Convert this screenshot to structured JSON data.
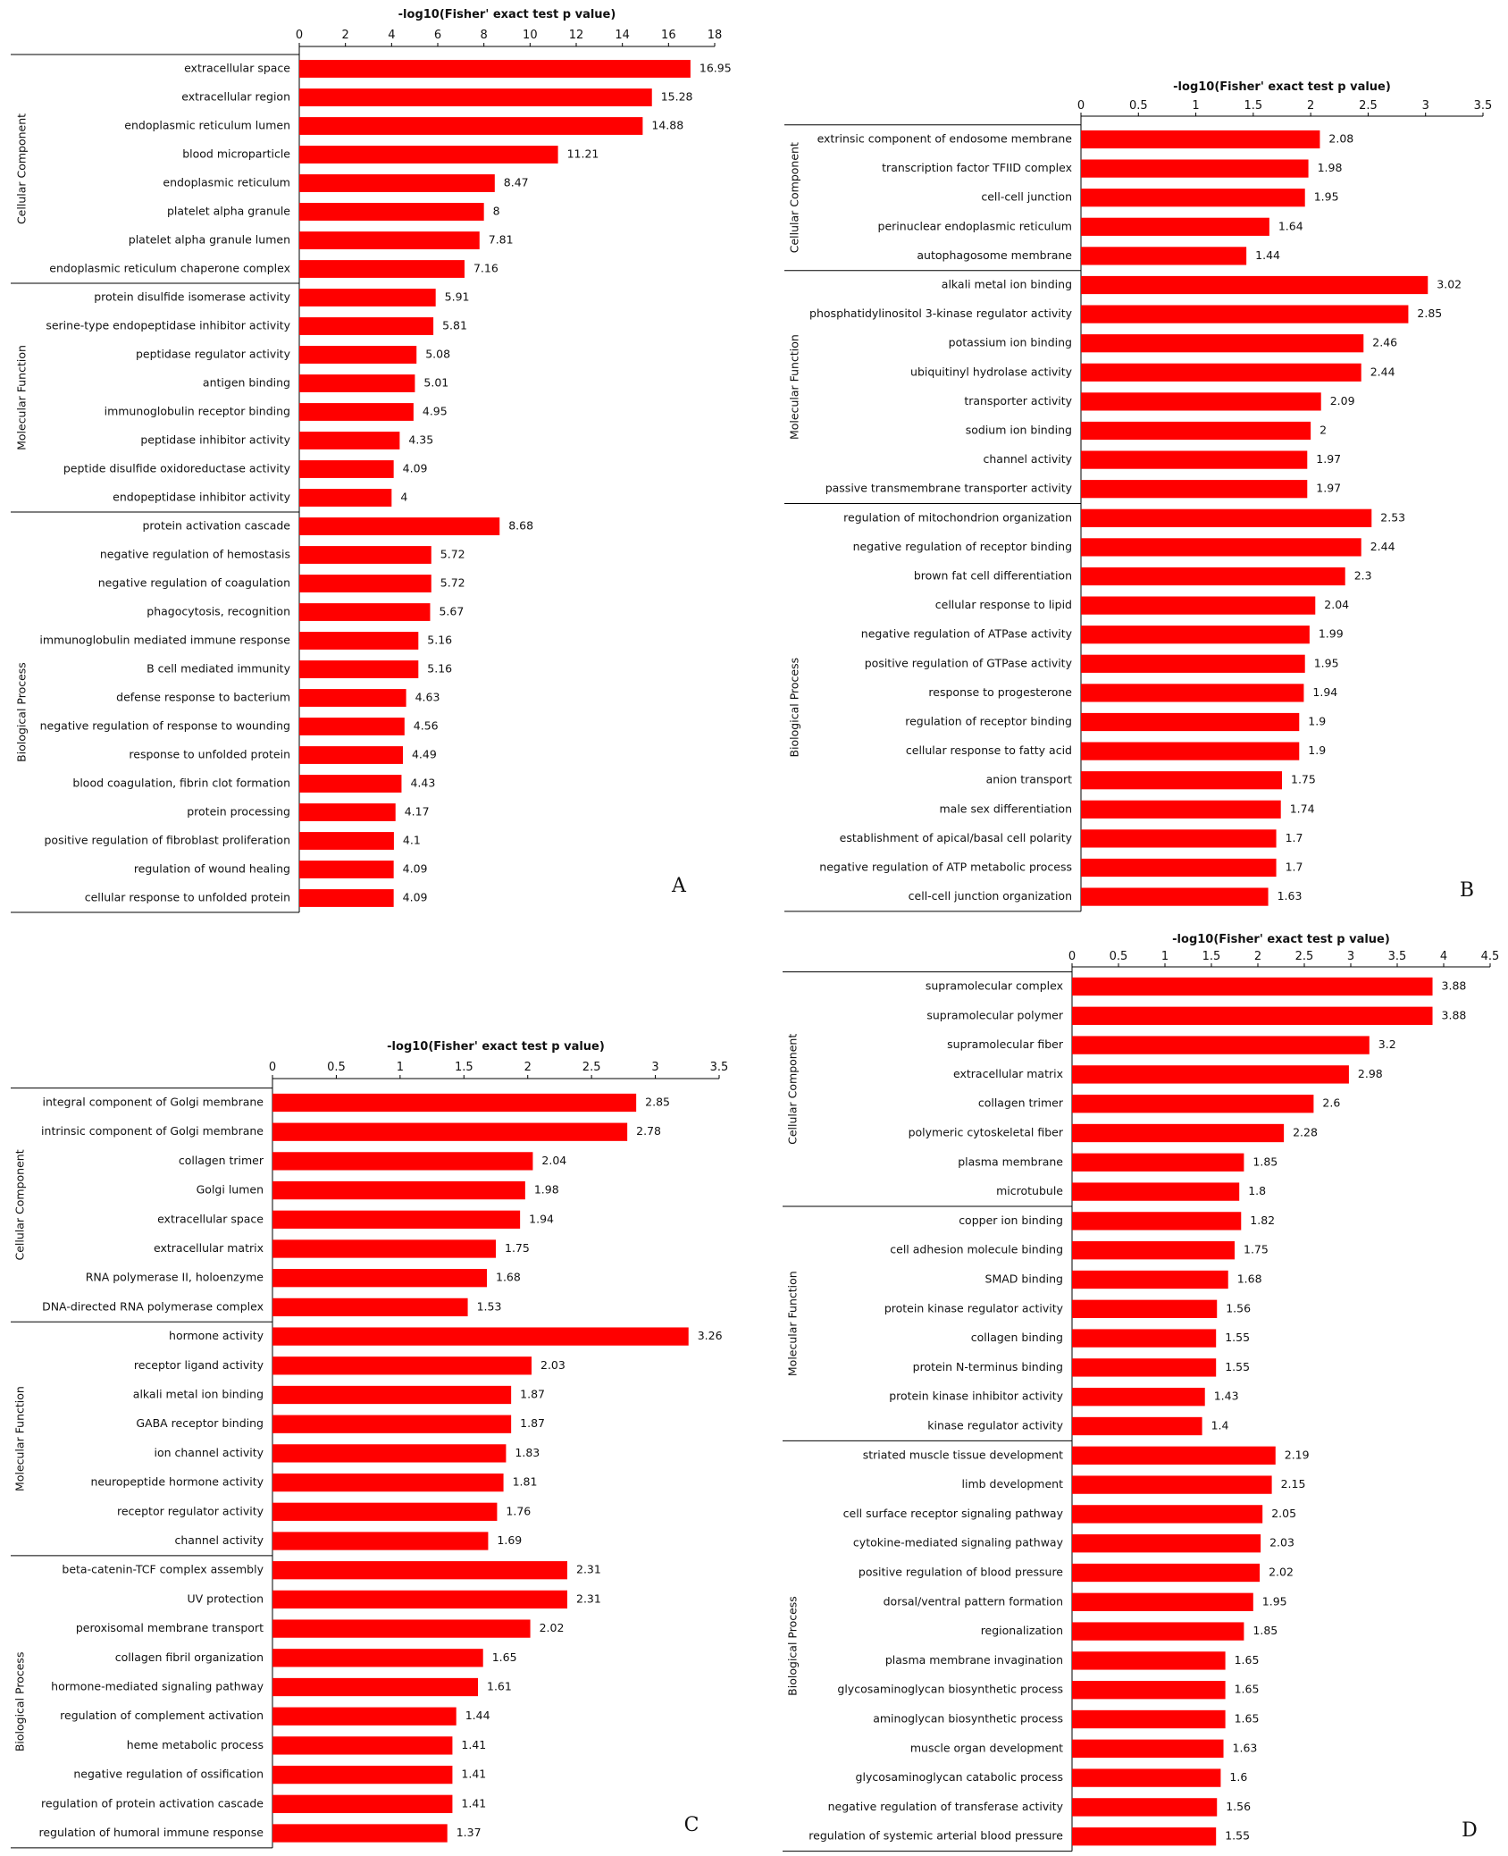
{
  "chart_data": [
    {
      "type": "bar",
      "panel": "A",
      "xlabel": "-log10(Fisher' exact test p value)",
      "xlim": [
        0,
        18
      ],
      "xticks": [
        0,
        2,
        4,
        6,
        8,
        10,
        12,
        14,
        16,
        18
      ],
      "bar_color": "#ff0000",
      "groups": [
        {
          "name": "Cellular Component",
          "count": 8
        },
        {
          "name": "Molecular Function",
          "count": 8
        },
        {
          "name": "Biological Process",
          "count": 14
        }
      ],
      "categories": [
        "extracellular space",
        "extracellular region",
        "endoplasmic reticulum lumen",
        "blood microparticle",
        "endoplasmic reticulum",
        "platelet alpha granule",
        "platelet alpha granule lumen",
        "endoplasmic reticulum chaperone complex",
        "protein disulfide isomerase activity",
        "serine-type endopeptidase inhibitor activity",
        "peptidase regulator activity",
        "antigen binding",
        "immunoglobulin receptor binding",
        "peptidase inhibitor activity",
        "peptide disulfide oxidoreductase activity",
        "endopeptidase inhibitor activity",
        "protein activation cascade",
        "negative regulation of hemostasis",
        "negative regulation of coagulation",
        "phagocytosis, recognition",
        "immunoglobulin mediated immune response",
        "B cell mediated immunity",
        "defense response to bacterium",
        "negative regulation of response to wounding",
        "response to unfolded protein",
        "blood coagulation, fibrin clot formation",
        "protein processing",
        "positive regulation of fibroblast proliferation",
        "regulation of wound healing",
        "cellular response to unfolded protein"
      ],
      "values": [
        16.95,
        15.28,
        14.88,
        11.21,
        8.47,
        8,
        7.81,
        7.16,
        5.91,
        5.81,
        5.08,
        5.01,
        4.95,
        4.35,
        4.09,
        4,
        8.68,
        5.72,
        5.72,
        5.67,
        5.16,
        5.16,
        4.63,
        4.56,
        4.49,
        4.43,
        4.17,
        4.1,
        4.09,
        4.09
      ],
      "value_labels": [
        "16.95",
        "15.28",
        "14.88",
        "11.21",
        "8.47",
        "8",
        "7.81",
        "7.16",
        "5.91",
        "5.81",
        "5.08",
        "5.01",
        "4.95",
        "4.35",
        "4.09",
        "4",
        "8.68",
        "5.72",
        "5.72",
        "5.67",
        "5.16",
        "5.16",
        "4.63",
        "4.56",
        "4.49",
        "4.43",
        "4.17",
        "4.1",
        "4.09",
        "4.09"
      ]
    },
    {
      "type": "bar",
      "panel": "B",
      "xlabel": "-log10(Fisher' exact test p value)",
      "xlim": [
        0,
        3.5
      ],
      "xticks": [
        0,
        0.5,
        1,
        1.5,
        2,
        2.5,
        3,
        3.5
      ],
      "bar_color": "#ff0000",
      "groups": [
        {
          "name": "Cellular Component",
          "count": 5
        },
        {
          "name": "Molecular Function",
          "count": 8
        },
        {
          "name": "Biological Process",
          "count": 14
        }
      ],
      "categories": [
        "extrinsic component of endosome membrane",
        "transcription factor TFIID complex",
        "cell-cell junction",
        "perinuclear endoplasmic reticulum",
        "autophagosome membrane",
        "alkali metal ion binding",
        "phosphatidylinositol 3-kinase regulator activity",
        "potassium ion binding",
        "ubiquitinyl hydrolase activity",
        "transporter activity",
        "sodium ion binding",
        "channel activity",
        "passive transmembrane transporter activity",
        "regulation of mitochondrion organization",
        "negative regulation of receptor binding",
        "brown fat cell differentiation",
        "cellular response to lipid",
        "negative regulation of ATPase activity",
        "positive regulation of GTPase activity",
        "response to progesterone",
        "regulation of receptor binding",
        "cellular response to fatty acid",
        "anion transport",
        "male sex differentiation",
        "establishment of apical/basal cell polarity",
        "negative regulation of ATP metabolic process",
        "cell-cell junction organization"
      ],
      "values": [
        2.08,
        1.98,
        1.95,
        1.64,
        1.44,
        3.02,
        2.85,
        2.46,
        2.44,
        2.09,
        2,
        1.97,
        1.97,
        2.53,
        2.44,
        2.3,
        2.04,
        1.99,
        1.95,
        1.94,
        1.9,
        1.9,
        1.75,
        1.74,
        1.7,
        1.7,
        1.63
      ],
      "value_labels": [
        "2.08",
        "1.98",
        "1.95",
        "1.64",
        "1.44",
        "3.02",
        "2.85",
        "2.46",
        "2.44",
        "2.09",
        "2",
        "1.97",
        "1.97",
        "2.53",
        "2.44",
        "2.3",
        "2.04",
        "1.99",
        "1.95",
        "1.94",
        "1.9",
        "1.9",
        "1.75",
        "1.74",
        "1.7",
        "1.7",
        "1.63"
      ]
    },
    {
      "type": "bar",
      "panel": "C",
      "xlabel": "-log10(Fisher' exact test p value)",
      "xlim": [
        0,
        3.5
      ],
      "xticks": [
        0,
        0.5,
        1,
        1.5,
        2,
        2.5,
        3,
        3.5
      ],
      "bar_color": "#ff0000",
      "groups": [
        {
          "name": "Cellular Component",
          "count": 8
        },
        {
          "name": "Molecular Function",
          "count": 8
        },
        {
          "name": "Biological Process",
          "count": 10
        }
      ],
      "categories": [
        "integral component of Golgi membrane",
        "intrinsic component of Golgi membrane",
        "collagen trimer",
        "Golgi lumen",
        "extracellular space",
        "extracellular matrix",
        "RNA polymerase II, holoenzyme",
        "DNA-directed RNA polymerase complex",
        "hormone activity",
        "receptor ligand activity",
        "alkali metal ion binding",
        "GABA receptor binding",
        "ion channel activity",
        "neuropeptide hormone activity",
        "receptor regulator activity",
        "channel activity",
        "beta-catenin-TCF complex assembly",
        "UV protection",
        "peroxisomal membrane transport",
        "collagen fibril organization",
        "hormone-mediated signaling pathway",
        "regulation of complement activation",
        "heme metabolic process",
        "negative regulation of ossification",
        "regulation of protein activation cascade",
        "regulation of humoral immune response"
      ],
      "values": [
        2.85,
        2.78,
        2.04,
        1.98,
        1.94,
        1.75,
        1.68,
        1.53,
        3.26,
        2.03,
        1.87,
        1.87,
        1.83,
        1.81,
        1.76,
        1.69,
        2.31,
        2.31,
        2.02,
        1.65,
        1.61,
        1.44,
        1.41,
        1.41,
        1.41,
        1.37
      ],
      "value_labels": [
        "2.85",
        "2.78",
        "2.04",
        "1.98",
        "1.94",
        "1.75",
        "1.68",
        "1.53",
        "3.26",
        "2.03",
        "1.87",
        "1.87",
        "1.83",
        "1.81",
        "1.76",
        "1.69",
        "2.31",
        "2.31",
        "2.02",
        "1.65",
        "1.61",
        "1.44",
        "1.41",
        "1.41",
        "1.41",
        "1.37"
      ]
    },
    {
      "type": "bar",
      "panel": "D",
      "xlabel": "-log10(Fisher' exact test p value)",
      "xlim": [
        0,
        4.5
      ],
      "xticks": [
        0,
        0.5,
        1,
        1.5,
        2,
        2.5,
        3,
        3.5,
        4,
        4.5
      ],
      "bar_color": "#ff0000",
      "groups": [
        {
          "name": "Cellular Component",
          "count": 8
        },
        {
          "name": "Molecular Function",
          "count": 8
        },
        {
          "name": "Biological Process",
          "count": 14
        }
      ],
      "categories": [
        "supramolecular complex",
        "supramolecular polymer",
        "supramolecular fiber",
        "extracellular matrix",
        "collagen trimer",
        "polymeric cytoskeletal fiber",
        "plasma membrane",
        "microtubule",
        "copper ion binding",
        "cell adhesion molecule binding",
        "SMAD binding",
        "protein kinase regulator activity",
        "collagen binding",
        "protein N-terminus binding",
        "protein kinase inhibitor activity",
        "kinase regulator activity",
        "striated muscle tissue development",
        "limb development",
        "cell surface receptor signaling pathway",
        "cytokine-mediated signaling pathway",
        "positive regulation of blood pressure",
        "dorsal/ventral pattern formation",
        "regionalization",
        "plasma membrane invagination",
        "glycosaminoglycan biosynthetic process",
        "aminoglycan biosynthetic process",
        "muscle organ development",
        "glycosaminoglycan catabolic process",
        "negative regulation of transferase activity",
        "regulation of systemic arterial blood pressure"
      ],
      "values": [
        3.88,
        3.88,
        3.2,
        2.98,
        2.6,
        2.28,
        1.85,
        1.8,
        1.82,
        1.75,
        1.68,
        1.56,
        1.55,
        1.55,
        1.43,
        1.4,
        2.19,
        2.15,
        2.05,
        2.03,
        2.02,
        1.95,
        1.85,
        1.65,
        1.65,
        1.65,
        1.63,
        1.6,
        1.56,
        1.55
      ],
      "value_labels": [
        "3.88",
        "3.88",
        "3.2",
        "2.98",
        "2.6",
        "2.28",
        "1.85",
        "1.8",
        "1.82",
        "1.75",
        "1.68",
        "1.56",
        "1.55",
        "1.55",
        "1.43",
        "1.4",
        "2.19",
        "2.15",
        "2.05",
        "2.03",
        "2.02",
        "1.95",
        "1.85",
        "1.65",
        "1.65",
        "1.65",
        "1.63",
        "1.6",
        "1.56",
        "1.55"
      ]
    }
  ]
}
